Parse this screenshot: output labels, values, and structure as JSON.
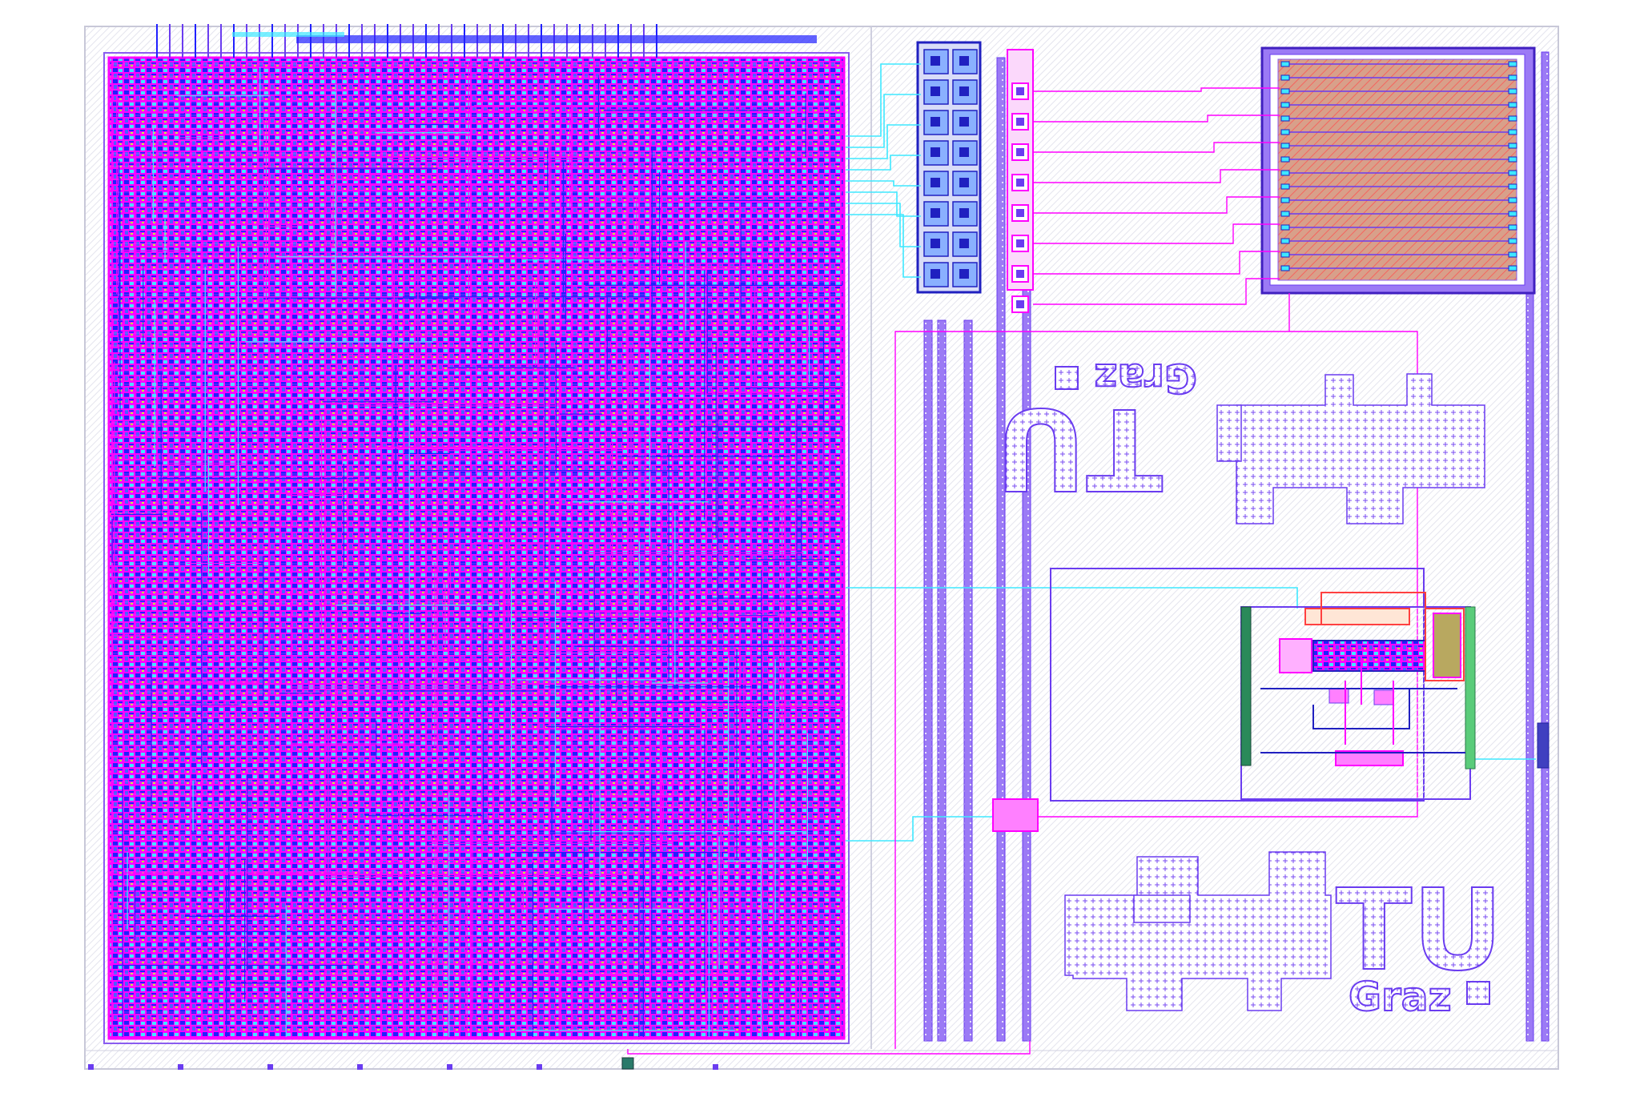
{
  "layout": {
    "logo_top": {
      "primary": "TU",
      "secondary": "Graz"
    },
    "logo_bottom": {
      "primary": "TU",
      "secondary": "Graz"
    }
  },
  "colors": {
    "background": "#ffffff",
    "die_hatch": "#e6e6ee",
    "metal1": "#2020ff",
    "metal2": "#ff00ff",
    "metal3": "#3ee8ff",
    "power_rail": "#8a5cf0",
    "poly": "#ff4040",
    "diffusion": "#22c070",
    "capacitor_fill": "#d8a08a",
    "logo_fill": "#6a3cf0"
  },
  "icons": {
    "logo_tiles": "tugraz-logo-icon",
    "pad_squares": "bond-pad-icon"
  }
}
